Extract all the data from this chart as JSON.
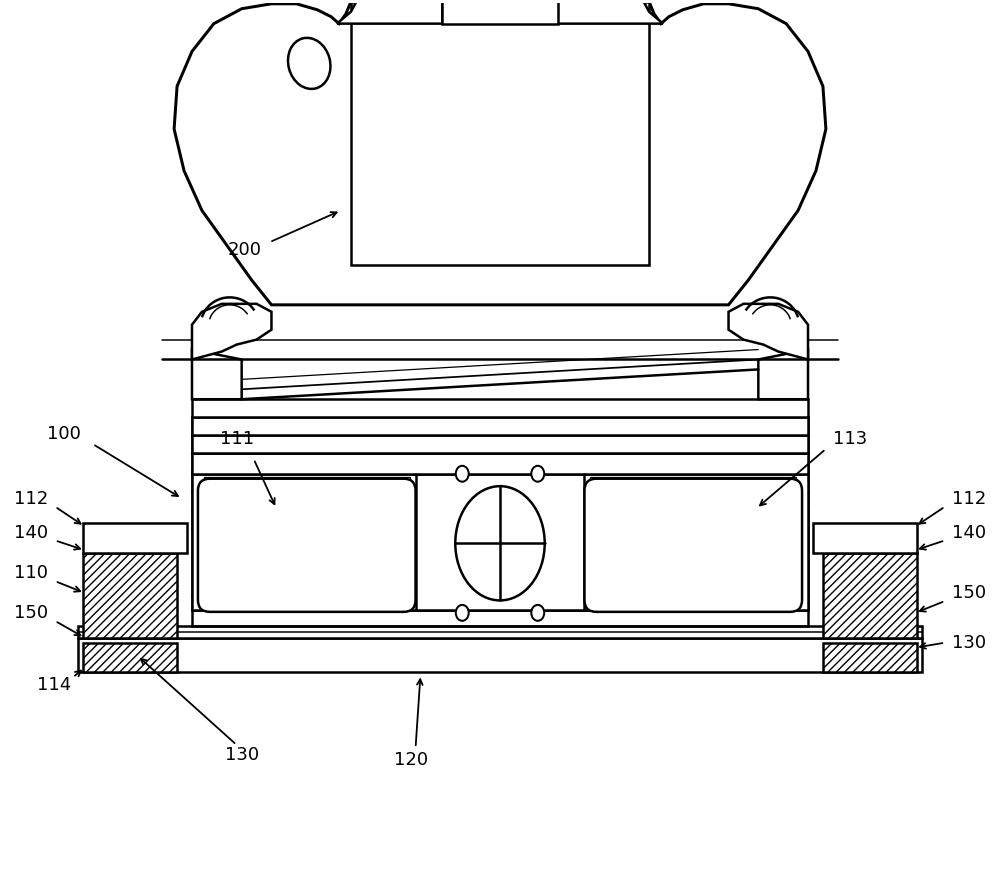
{
  "background_color": "#ffffff",
  "line_color": "#000000",
  "line_width": 1.8,
  "fig_width": 10.0,
  "fig_height": 8.69,
  "label_fontsize": 13
}
